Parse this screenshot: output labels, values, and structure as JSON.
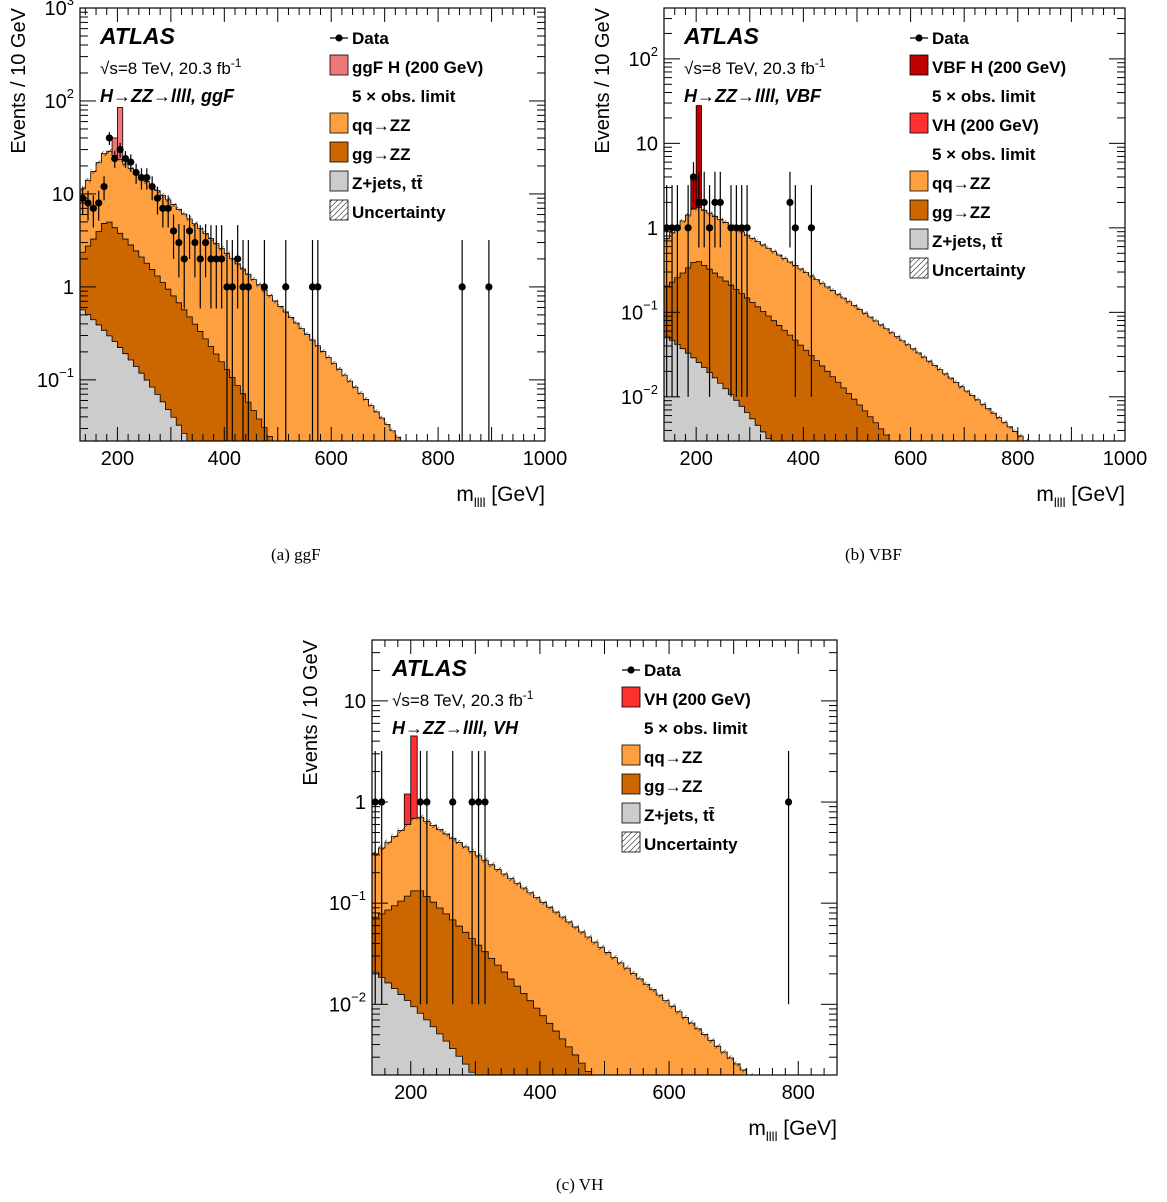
{
  "chart_data": [
    {
      "panel": "a",
      "type": "histogram",
      "caption": "(a) ggF",
      "ylabel": "Events / 10 GeV",
      "xlabel": "m",
      "xlabel_sub": "llll",
      "xlabel_unit": "[GeV]",
      "xlim": [
        130,
        1000
      ],
      "ylim": [
        0.022,
        1000
      ],
      "log_y": true,
      "xticks": [
        200,
        400,
        600,
        800,
        1000
      ],
      "yticks": [
        {
          "v": 0.1,
          "b": "10",
          "e": "−1"
        },
        {
          "v": 1,
          "b": "1",
          "e": ""
        },
        {
          "v": 10,
          "b": "10",
          "e": ""
        },
        {
          "v": 100,
          "b": "10",
          "e": "2"
        },
        {
          "v": 1000,
          "b": "10",
          "e": "3"
        }
      ],
      "experiment": "ATLAS",
      "energy": "√s=8 TeV, 20.3 fb",
      "energy_sup": "-1",
      "process": "H→ZZ→llll, ggF",
      "legend": [
        {
          "label": "Data",
          "kind": "data"
        },
        {
          "label": "ggF H (200 GeV)",
          "kind": "box",
          "color": "#f07878"
        },
        {
          "label": "5 × obs. limit",
          "kind": "none"
        },
        {
          "label": "qq→ZZ",
          "kind": "box",
          "color": "#ffa040"
        },
        {
          "label": "gg→ZZ",
          "kind": "box",
          "color": "#cc6600"
        },
        {
          "label": "Z+jets, tt̄",
          "kind": "box",
          "color": "#cccccc"
        },
        {
          "label": "Uncertainty",
          "kind": "hatch"
        }
      ],
      "bkg_shape": {
        "peak": 180,
        "peakmax": 25,
        "lowval": 8,
        "lowstart": 130,
        "decay": 0.0096,
        "gg_frac": 0.2,
        "gg_decay": 0.0038,
        "zj_frac": 0.075,
        "zj_decay": 0.0115
      },
      "signal": {
        "color": "#f07878",
        "bins": [
          [
            190,
            40
          ],
          [
            200,
            85
          ]
        ]
      },
      "data": [
        [
          135,
          9
        ],
        [
          145,
          8
        ],
        [
          155,
          7
        ],
        [
          165,
          8
        ],
        [
          175,
          12
        ],
        [
          185,
          40
        ],
        [
          195,
          24
        ],
        [
          205,
          30
        ],
        [
          215,
          24
        ],
        [
          225,
          22
        ],
        [
          235,
          17
        ],
        [
          245,
          15
        ],
        [
          255,
          15
        ],
        [
          265,
          12
        ],
        [
          275,
          9
        ],
        [
          285,
          7
        ],
        [
          295,
          7
        ],
        [
          305,
          4
        ],
        [
          315,
          3
        ],
        [
          325,
          2
        ],
        [
          335,
          4
        ],
        [
          345,
          3
        ],
        [
          355,
          2
        ],
        [
          365,
          3
        ],
        [
          375,
          2
        ],
        [
          385,
          2
        ],
        [
          395,
          2
        ],
        [
          405,
          1
        ],
        [
          415,
          1
        ],
        [
          425,
          2
        ],
        [
          435,
          1
        ],
        [
          445,
          1
        ],
        [
          475,
          1
        ],
        [
          515,
          1
        ],
        [
          565,
          1
        ],
        [
          575,
          1
        ],
        [
          845,
          1
        ],
        [
          895,
          1
        ]
      ]
    },
    {
      "panel": "b",
      "type": "histogram",
      "caption": "(b) VBF",
      "ylabel": "Events / 10 GeV",
      "xlabel": "m",
      "xlabel_sub": "llll",
      "xlabel_unit": "[GeV]",
      "xlim": [
        140,
        1000
      ],
      "ylim": [
        0.003,
        400
      ],
      "log_y": true,
      "xticks": [
        200,
        400,
        600,
        800,
        1000
      ],
      "yticks": [
        {
          "v": 0.01,
          "b": "10",
          "e": "−2"
        },
        {
          "v": 0.1,
          "b": "10",
          "e": "−1"
        },
        {
          "v": 1,
          "b": "1",
          "e": ""
        },
        {
          "v": 10,
          "b": "10",
          "e": ""
        },
        {
          "v": 100,
          "b": "10",
          "e": "2"
        }
      ],
      "experiment": "ATLAS",
      "energy": "√s=8 TeV, 20.3 fb",
      "energy_sup": "-1",
      "process": "H→ZZ→llll, VBF",
      "legend": [
        {
          "label": "Data",
          "kind": "data"
        },
        {
          "label": "VBF H (200 GeV)",
          "kind": "box",
          "color": "#c00000"
        },
        {
          "label": "5 × obs. limit",
          "kind": "none"
        },
        {
          "label": "VH (200 GeV)",
          "kind": "box",
          "color": "#ff3030"
        },
        {
          "label": "5 × obs. limit",
          "kind": "none"
        },
        {
          "label": "qq→ZZ",
          "kind": "box",
          "color": "#ffa040"
        },
        {
          "label": "gg→ZZ",
          "kind": "box",
          "color": "#cc6600"
        },
        {
          "label": "Z+jets, tt̄",
          "kind": "box",
          "color": "#cccccc"
        },
        {
          "label": "Uncertainty",
          "kind": "hatch"
        }
      ],
      "bkg_shape": {
        "peak": 200,
        "peakmax": 1.4,
        "lowval": 0.5,
        "lowstart": 140,
        "decay": 0.0073,
        "gg_frac": 0.28,
        "gg_decay": 0.0025,
        "zj_frac": 0.11,
        "zj_decay": 0.0105
      },
      "signal": {
        "color": "#c00000",
        "bins": [
          [
            190,
            4
          ],
          [
            200,
            28
          ]
        ]
      },
      "data": [
        [
          145,
          1
        ],
        [
          155,
          1
        ],
        [
          165,
          1
        ],
        [
          185,
          1
        ],
        [
          195,
          4
        ],
        [
          205,
          2
        ],
        [
          215,
          2
        ],
        [
          225,
          1
        ],
        [
          235,
          2
        ],
        [
          245,
          2
        ],
        [
          265,
          1
        ],
        [
          275,
          1
        ],
        [
          285,
          1
        ],
        [
          295,
          1
        ],
        [
          375,
          2
        ],
        [
          385,
          1
        ],
        [
          415,
          1
        ]
      ]
    },
    {
      "panel": "c",
      "type": "histogram",
      "caption": "(c) VH",
      "ylabel": "Events / 10 GeV",
      "xlabel": "m",
      "xlabel_sub": "llll",
      "xlabel_unit": "[GeV]",
      "xlim": [
        140,
        860
      ],
      "ylim": [
        0.002,
        40
      ],
      "log_y": true,
      "xticks": [
        200,
        400,
        600,
        800
      ],
      "yticks": [
        {
          "v": 0.01,
          "b": "10",
          "e": "−2"
        },
        {
          "v": 0.1,
          "b": "10",
          "e": "−1"
        },
        {
          "v": 1,
          "b": "1",
          "e": ""
        },
        {
          "v": 10,
          "b": "10",
          "e": ""
        }
      ],
      "experiment": "ATLAS",
      "energy": "√s=8 TeV, 20.3 fb",
      "energy_sup": "-1",
      "process": "H→ZZ→llll, VH",
      "legend": [
        {
          "label": "Data",
          "kind": "data"
        },
        {
          "label": "VH (200 GeV)",
          "kind": "box",
          "color": "#ff3030"
        },
        {
          "label": "5 × obs. limit",
          "kind": "none"
        },
        {
          "label": "qq→ZZ",
          "kind": "box",
          "color": "#ffa040"
        },
        {
          "label": "gg→ZZ",
          "kind": "box",
          "color": "#cc6600"
        },
        {
          "label": "Z+jets, tt̄",
          "kind": "box",
          "color": "#cccccc"
        },
        {
          "label": "Uncertainty",
          "kind": "hatch"
        }
      ],
      "bkg_shape": {
        "peak": 210,
        "peakmax": 0.6,
        "lowval": 0.22,
        "lowstart": 140,
        "decay": 0.0085,
        "gg_frac": 0.22,
        "gg_decay": 0.0038,
        "zj_frac": 0.1,
        "zj_decay": 0.0115
      },
      "signal": {
        "color": "#ff3030",
        "bins": [
          [
            190,
            1.2
          ],
          [
            200,
            4.5
          ]
        ]
      },
      "data": [
        [
          145,
          1
        ],
        [
          155,
          1
        ],
        [
          215,
          1
        ],
        [
          225,
          1
        ],
        [
          265,
          1
        ],
        [
          295,
          1
        ],
        [
          305,
          1
        ],
        [
          315,
          1
        ],
        [
          785,
          1
        ]
      ]
    }
  ]
}
